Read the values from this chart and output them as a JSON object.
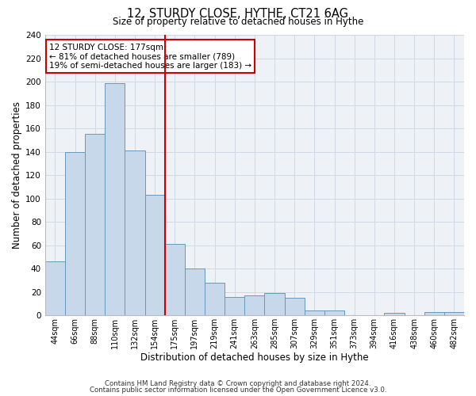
{
  "title1": "12, STURDY CLOSE, HYTHE, CT21 6AG",
  "title2": "Size of property relative to detached houses in Hythe",
  "xlabel": "Distribution of detached houses by size in Hythe",
  "ylabel": "Number of detached properties",
  "bar_labels": [
    "44sqm",
    "66sqm",
    "88sqm",
    "110sqm",
    "132sqm",
    "154sqm",
    "175sqm",
    "197sqm",
    "219sqm",
    "241sqm",
    "263sqm",
    "285sqm",
    "307sqm",
    "329sqm",
    "351sqm",
    "373sqm",
    "394sqm",
    "416sqm",
    "438sqm",
    "460sqm",
    "482sqm"
  ],
  "bar_values": [
    46,
    140,
    155,
    199,
    141,
    103,
    61,
    40,
    28,
    16,
    17,
    19,
    15,
    4,
    4,
    0,
    0,
    2,
    0,
    3,
    3
  ],
  "bar_color": "#c8d8eb",
  "bar_edge_color": "#6699bb",
  "annotation_line1": "12 STURDY CLOSE: 177sqm",
  "annotation_line2": "← 81% of detached houses are smaller (789)",
  "annotation_line3": "19% of semi-detached houses are larger (183) →",
  "annotation_box_edge_color": "#cc0000",
  "vline_color": "#cc0000",
  "vline_x": 5.5,
  "ylim": [
    0,
    240
  ],
  "yticks": [
    0,
    20,
    40,
    60,
    80,
    100,
    120,
    140,
    160,
    180,
    200,
    220,
    240
  ],
  "footer1": "Contains HM Land Registry data © Crown copyright and database right 2024.",
  "footer2": "Contains public sector information licensed under the Open Government Licence v3.0.",
  "bg_color": "#eef2f7",
  "grid_color": "#d0d8e4"
}
